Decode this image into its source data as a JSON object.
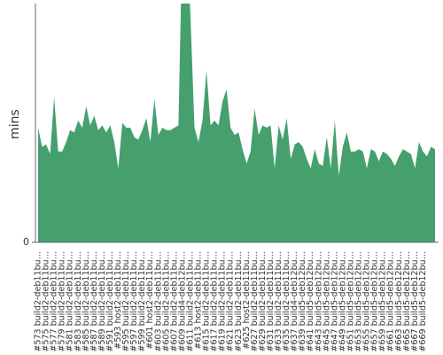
{
  "chart_data": {
    "type": "area",
    "y_label": "mins",
    "color": "#45a06e",
    "categories": [
      "#573 build2-deb11bu…",
      null,
      "#575 build2-deb11bu…",
      null,
      "#577 build2-deb11bu…",
      null,
      "#579 build2-deb11bu…",
      null,
      "#581 build2-deb11bu…",
      null,
      "#583 build2-deb11bu…",
      null,
      "#585 build2-deb11bu…",
      null,
      "#587 build2-deb11bu…",
      null,
      "#589 build2-deb11bu…",
      null,
      "#591 build2-deb11bu…",
      null,
      "#593 host2-deb11bu…",
      null,
      "#595 build2-deb11bu…",
      null,
      "#597 build2-deb11bu…",
      null,
      "#599 build2-deb11bu…",
      null,
      "#601 host2-deb11bu…",
      null,
      "#603 build2-deb11bu…",
      null,
      "#605 build2-deb11bu…",
      null,
      "#607 build2-deb11bu…",
      null,
      "#609 build4-deb12bu…",
      null,
      "#611 build2-deb11bu…",
      null,
      "#613 host2-deb11bu…",
      null,
      "#615 build2-deb11bu…",
      null,
      "#617 build2-deb11bu…",
      null,
      "#619 build2-deb11bu…",
      null,
      "#621 build2-deb11bu…",
      null,
      "#623 build2-deb11bu…",
      null,
      "#625 host2-deb11bu…",
      null,
      "#627 build2-deb11bu…",
      null,
      "#629 build2-deb11bu…",
      null,
      "#631 build2-deb11bu…",
      null,
      "#633 build2-deb11bu…",
      null,
      "#635 build2-deb11bu…",
      null,
      "#637 build4-deb12bu…",
      null,
      "#639 build5-deb12bu…",
      null,
      "#641 build5-deb12bu…",
      null,
      "#643 build5-deb12bu…",
      null,
      "#645 build5-deb12bu…",
      null,
      "#647 build5-deb12bu…",
      null,
      "#649 build5-deb12bu…",
      null,
      "#651 build5-deb12bu…",
      null,
      "#653 build5-deb12bu…",
      null,
      "#655 build5-deb12bu…",
      null,
      "#657 build5-deb12bu…",
      null,
      "#659 build5-deb12bu…",
      null,
      "#661 build5-deb12bu…",
      null,
      "#663 build5-deb12bu…",
      null,
      "#665 build5-deb12bu…",
      null,
      "#667 build5-deb12bu…",
      null,
      "#669 build5-deb12bu…",
      null,
      null,
      null
    ],
    "values": [
      48,
      40,
      41,
      37,
      61,
      38,
      38,
      42,
      47,
      46,
      51,
      48,
      57,
      49,
      53,
      47,
      49,
      46,
      49,
      42,
      31,
      50,
      48,
      48,
      44,
      43,
      47,
      52,
      42,
      60,
      45,
      48,
      47,
      47,
      48,
      49,
      130,
      130,
      95,
      48,
      42,
      51,
      72,
      49,
      51,
      49,
      59,
      64,
      48,
      45,
      46,
      39,
      33,
      38,
      56,
      45,
      49,
      48,
      49,
      31,
      49,
      43,
      52,
      35,
      41,
      42,
      40,
      35,
      31,
      39,
      33,
      32,
      44,
      31,
      51,
      28,
      40,
      46,
      38,
      38,
      39,
      38,
      31,
      39,
      38,
      34,
      38,
      37,
      35,
      32,
      36,
      39,
      38,
      37,
      31,
      42,
      38,
      36,
      40,
      39
    ],
    "ylim": [
      0,
      100
    ],
    "yticks": [
      0
    ]
  }
}
